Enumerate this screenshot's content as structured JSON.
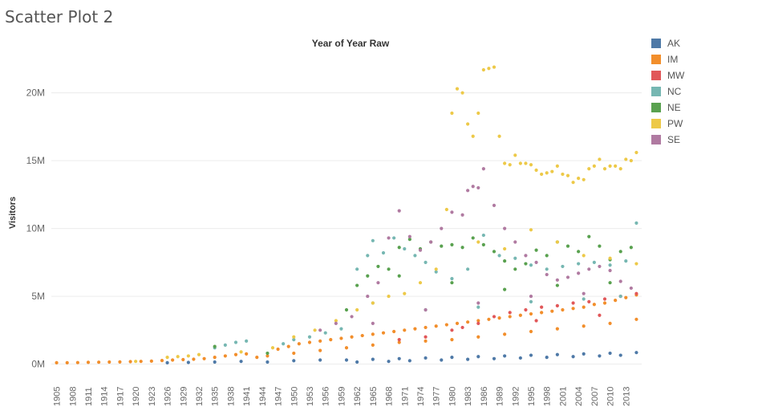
{
  "page": {
    "title": "Scatter Plot 2"
  },
  "chart_data": {
    "type": "scatter",
    "title": "Year of Year Raw",
    "xlabel": "",
    "ylabel": "Visitors",
    "xlim": [
      1904,
      2016
    ],
    "ylim": [
      -500000,
      23000000
    ],
    "y_ticks": [
      0,
      5000000,
      10000000,
      15000000,
      20000000
    ],
    "y_tick_labels": [
      "0M",
      "5M",
      "10M",
      "15M",
      "20M"
    ],
    "x_ticks": [
      "1905",
      "1908",
      "1911",
      "1914",
      "1917",
      "1920",
      "1923",
      "1926",
      "1929",
      "1932",
      "1935",
      "1938",
      "1941",
      "1944",
      "1947",
      "1950",
      "1953",
      "1956",
      "1959",
      "1962",
      "1965",
      "1968",
      "1971",
      "1974",
      "1977",
      "1980",
      "1983",
      "1986",
      "1989",
      "1992",
      "1995",
      "1998",
      "2001",
      "2004",
      "2007",
      "2010",
      "2013"
    ],
    "grid": "horizontal",
    "legend_position": "right",
    "series": [
      {
        "name": "AK",
        "color": "#4e79a7",
        "points": [
          [
            1926,
            100000
          ],
          [
            1930,
            120000
          ],
          [
            1935,
            150000
          ],
          [
            1940,
            200000
          ],
          [
            1945,
            150000
          ],
          [
            1950,
            250000
          ],
          [
            1955,
            300000
          ],
          [
            1960,
            300000
          ],
          [
            1965,
            350000
          ],
          [
            1970,
            400000
          ],
          [
            1975,
            450000
          ],
          [
            1980,
            500000
          ],
          [
            1985,
            550000
          ],
          [
            1990,
            600000
          ],
          [
            1995,
            650000
          ],
          [
            2000,
            700000
          ],
          [
            2005,
            750000
          ],
          [
            2010,
            800000
          ],
          [
            2015,
            850000
          ],
          [
            1962,
            150000
          ],
          [
            1968,
            200000
          ],
          [
            1972,
            250000
          ],
          [
            1978,
            300000
          ],
          [
            1983,
            350000
          ],
          [
            1988,
            400000
          ],
          [
            1993,
            450000
          ],
          [
            1998,
            500000
          ],
          [
            2003,
            550000
          ],
          [
            2008,
            600000
          ],
          [
            2012,
            650000
          ]
        ]
      },
      {
        "name": "IM",
        "color": "#f28e2b",
        "points": [
          [
            1905,
            100000
          ],
          [
            1907,
            100000
          ],
          [
            1909,
            110000
          ],
          [
            1911,
            130000
          ],
          [
            1913,
            140000
          ],
          [
            1915,
            150000
          ],
          [
            1917,
            160000
          ],
          [
            1919,
            180000
          ],
          [
            1921,
            200000
          ],
          [
            1923,
            220000
          ],
          [
            1925,
            260000
          ],
          [
            1927,
            300000
          ],
          [
            1929,
            330000
          ],
          [
            1931,
            360000
          ],
          [
            1933,
            400000
          ],
          [
            1935,
            500000
          ],
          [
            1937,
            600000
          ],
          [
            1939,
            700000
          ],
          [
            1941,
            750000
          ],
          [
            1943,
            500000
          ],
          [
            1945,
            600000
          ],
          [
            1947,
            1100000
          ],
          [
            1949,
            1300000
          ],
          [
            1951,
            1500000
          ],
          [
            1953,
            1600000
          ],
          [
            1955,
            1700000
          ],
          [
            1957,
            1800000
          ],
          [
            1959,
            1900000
          ],
          [
            1961,
            2000000
          ],
          [
            1963,
            2100000
          ],
          [
            1965,
            2200000
          ],
          [
            1967,
            2300000
          ],
          [
            1969,
            2400000
          ],
          [
            1971,
            2500000
          ],
          [
            1973,
            2600000
          ],
          [
            1975,
            2700000
          ],
          [
            1977,
            2800000
          ],
          [
            1979,
            2900000
          ],
          [
            1981,
            3000000
          ],
          [
            1983,
            3100000
          ],
          [
            1985,
            3200000
          ],
          [
            1987,
            3300000
          ],
          [
            1989,
            3400000
          ],
          [
            1991,
            3500000
          ],
          [
            1993,
            3600000
          ],
          [
            1995,
            3700000
          ],
          [
            1997,
            3800000
          ],
          [
            1999,
            3900000
          ],
          [
            2001,
            4000000
          ],
          [
            2003,
            4100000
          ],
          [
            2005,
            4200000
          ],
          [
            2007,
            4400000
          ],
          [
            2009,
            4500000
          ],
          [
            2011,
            4700000
          ],
          [
            2013,
            4900000
          ],
          [
            2015,
            5100000
          ],
          [
            1950,
            800000
          ],
          [
            1955,
            1000000
          ],
          [
            1960,
            1200000
          ],
          [
            1965,
            1400000
          ],
          [
            1970,
            1600000
          ],
          [
            1975,
            1700000
          ],
          [
            1980,
            1800000
          ],
          [
            1985,
            2000000
          ],
          [
            1990,
            2200000
          ],
          [
            1995,
            2400000
          ],
          [
            2000,
            2600000
          ],
          [
            2005,
            2800000
          ],
          [
            2010,
            3000000
          ],
          [
            2015,
            3300000
          ]
        ]
      },
      {
        "name": "MW",
        "color": "#e15759",
        "points": [
          [
            1975,
            2000000
          ],
          [
            1980,
            2500000
          ],
          [
            1985,
            3000000
          ],
          [
            1988,
            3500000
          ],
          [
            1991,
            3800000
          ],
          [
            1994,
            4000000
          ],
          [
            1997,
            4200000
          ],
          [
            2000,
            4300000
          ],
          [
            2003,
            4500000
          ],
          [
            2006,
            4600000
          ],
          [
            2009,
            4800000
          ],
          [
            2012,
            5000000
          ],
          [
            2015,
            5200000
          ],
          [
            1970,
            1800000
          ],
          [
            1982,
            2700000
          ],
          [
            1996,
            3200000
          ],
          [
            2008,
            3600000
          ]
        ]
      },
      {
        "name": "NC",
        "color": "#76b7b2",
        "points": [
          [
            1935,
            1200000
          ],
          [
            1937,
            1400000
          ],
          [
            1939,
            1600000
          ],
          [
            1941,
            1700000
          ],
          [
            1948,
            1500000
          ],
          [
            1950,
            1800000
          ],
          [
            1953,
            2000000
          ],
          [
            1956,
            2300000
          ],
          [
            1959,
            2600000
          ],
          [
            1962,
            7000000
          ],
          [
            1964,
            8000000
          ],
          [
            1965,
            9100000
          ],
          [
            1967,
            8200000
          ],
          [
            1969,
            9300000
          ],
          [
            1971,
            8500000
          ],
          [
            1973,
            8000000
          ],
          [
            1975,
            7500000
          ],
          [
            1977,
            6800000
          ],
          [
            1980,
            6300000
          ],
          [
            1983,
            7000000
          ],
          [
            1986,
            9500000
          ],
          [
            1989,
            8000000
          ],
          [
            1992,
            7800000
          ],
          [
            1995,
            7300000
          ],
          [
            1998,
            7000000
          ],
          [
            2001,
            7200000
          ],
          [
            2004,
            7400000
          ],
          [
            2007,
            7500000
          ],
          [
            2010,
            7300000
          ],
          [
            2013,
            7600000
          ],
          [
            2015,
            10400000
          ],
          [
            1965,
            4500000
          ],
          [
            1975,
            4000000
          ],
          [
            1985,
            4200000
          ],
          [
            1995,
            4600000
          ],
          [
            2005,
            4800000
          ],
          [
            2012,
            5000000
          ]
        ]
      },
      {
        "name": "NE",
        "color": "#59a14f",
        "points": [
          [
            1935,
            1300000
          ],
          [
            1945,
            800000
          ],
          [
            1960,
            4000000
          ],
          [
            1962,
            5800000
          ],
          [
            1964,
            6500000
          ],
          [
            1966,
            7200000
          ],
          [
            1968,
            7000000
          ],
          [
            1970,
            8600000
          ],
          [
            1972,
            9200000
          ],
          [
            1974,
            8500000
          ],
          [
            1976,
            9000000
          ],
          [
            1978,
            8700000
          ],
          [
            1980,
            8800000
          ],
          [
            1982,
            8600000
          ],
          [
            1984,
            9300000
          ],
          [
            1986,
            8800000
          ],
          [
            1988,
            8300000
          ],
          [
            1990,
            7600000
          ],
          [
            1992,
            7000000
          ],
          [
            1994,
            7400000
          ],
          [
            1996,
            8400000
          ],
          [
            1998,
            8000000
          ],
          [
            2000,
            9000000
          ],
          [
            2002,
            8700000
          ],
          [
            2004,
            8300000
          ],
          [
            2006,
            9400000
          ],
          [
            2008,
            8700000
          ],
          [
            2010,
            7700000
          ],
          [
            2012,
            8300000
          ],
          [
            2014,
            8600000
          ],
          [
            1970,
            6500000
          ],
          [
            1980,
            6000000
          ],
          [
            1990,
            5500000
          ],
          [
            2000,
            5800000
          ],
          [
            2010,
            6000000
          ]
        ]
      },
      {
        "name": "PW",
        "color": "#edc948",
        "points": [
          [
            1920,
            200000
          ],
          [
            1926,
            500000
          ],
          [
            1928,
            550000
          ],
          [
            1930,
            600000
          ],
          [
            1932,
            700000
          ],
          [
            1940,
            900000
          ],
          [
            1946,
            1200000
          ],
          [
            1950,
            2000000
          ],
          [
            1954,
            2500000
          ],
          [
            1958,
            3200000
          ],
          [
            1962,
            4000000
          ],
          [
            1965,
            4500000
          ],
          [
            1968,
            5000000
          ],
          [
            1971,
            5200000
          ],
          [
            1974,
            6000000
          ],
          [
            1977,
            7000000
          ],
          [
            1979,
            11400000
          ],
          [
            1980,
            18500000
          ],
          [
            1981,
            20300000
          ],
          [
            1982,
            20000000
          ],
          [
            1983,
            17700000
          ],
          [
            1984,
            16800000
          ],
          [
            1985,
            18500000
          ],
          [
            1986,
            21700000
          ],
          [
            1987,
            21800000
          ],
          [
            1988,
            21900000
          ],
          [
            1989,
            16800000
          ],
          [
            1990,
            14800000
          ],
          [
            1991,
            14700000
          ],
          [
            1992,
            15400000
          ],
          [
            1993,
            14800000
          ],
          [
            1994,
            14800000
          ],
          [
            1995,
            14700000
          ],
          [
            1996,
            14300000
          ],
          [
            1997,
            14000000
          ],
          [
            1998,
            14100000
          ],
          [
            1999,
            14200000
          ],
          [
            2000,
            14600000
          ],
          [
            2001,
            14000000
          ],
          [
            2002,
            13900000
          ],
          [
            2003,
            13400000
          ],
          [
            2004,
            13700000
          ],
          [
            2005,
            13600000
          ],
          [
            2006,
            14400000
          ],
          [
            2007,
            14600000
          ],
          [
            2008,
            15100000
          ],
          [
            2009,
            14400000
          ],
          [
            2010,
            14600000
          ],
          [
            2011,
            14600000
          ],
          [
            2012,
            14400000
          ],
          [
            2013,
            15100000
          ],
          [
            2014,
            15000000
          ],
          [
            2015,
            15600000
          ],
          [
            1985,
            9000000
          ],
          [
            1990,
            8500000
          ],
          [
            1995,
            9900000
          ],
          [
            2000,
            9000000
          ],
          [
            2005,
            8000000
          ],
          [
            2010,
            7800000
          ],
          [
            2015,
            7400000
          ]
        ]
      },
      {
        "name": "SE",
        "color": "#b07aa1",
        "points": [
          [
            1955,
            2500000
          ],
          [
            1958,
            3000000
          ],
          [
            1961,
            3500000
          ],
          [
            1964,
            5000000
          ],
          [
            1966,
            6000000
          ],
          [
            1968,
            9300000
          ],
          [
            1970,
            11300000
          ],
          [
            1972,
            9400000
          ],
          [
            1974,
            8400000
          ],
          [
            1976,
            9000000
          ],
          [
            1978,
            10000000
          ],
          [
            1980,
            11200000
          ],
          [
            1982,
            11000000
          ],
          [
            1983,
            12800000
          ],
          [
            1984,
            13100000
          ],
          [
            1985,
            13000000
          ],
          [
            1986,
            14400000
          ],
          [
            1988,
            11700000
          ],
          [
            1990,
            10000000
          ],
          [
            1992,
            9000000
          ],
          [
            1994,
            8000000
          ],
          [
            1996,
            7500000
          ],
          [
            1998,
            6600000
          ],
          [
            2000,
            6200000
          ],
          [
            2002,
            6400000
          ],
          [
            2004,
            6700000
          ],
          [
            2006,
            7000000
          ],
          [
            2008,
            7200000
          ],
          [
            2010,
            6900000
          ],
          [
            2012,
            6100000
          ],
          [
            2014,
            5600000
          ],
          [
            1965,
            3000000
          ],
          [
            1975,
            4000000
          ],
          [
            1985,
            4500000
          ],
          [
            1995,
            5000000
          ],
          [
            2005,
            5200000
          ]
        ]
      }
    ]
  }
}
